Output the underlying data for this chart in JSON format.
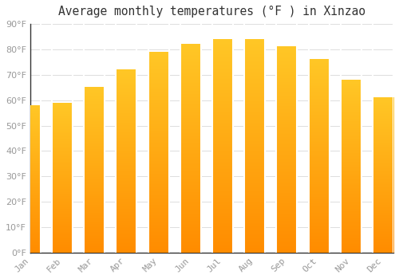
{
  "title": "Average monthly temperatures (°F ) in Xinzao",
  "months": [
    "Jan",
    "Feb",
    "Mar",
    "Apr",
    "May",
    "Jun",
    "Jul",
    "Aug",
    "Sep",
    "Oct",
    "Nov",
    "Dec"
  ],
  "values": [
    58,
    59,
    65,
    72,
    79,
    82,
    84,
    84,
    81,
    76,
    68,
    61
  ],
  "bar_color_top": "#FFC726",
  "bar_color_bottom": "#FF8C00",
  "background_color": "#FFFFFF",
  "grid_color": "#DDDDDD",
  "ylim": [
    0,
    90
  ],
  "yticks": [
    0,
    10,
    20,
    30,
    40,
    50,
    60,
    70,
    80,
    90
  ],
  "title_fontsize": 10.5,
  "tick_fontsize": 8,
  "title_color": "#333333",
  "tick_color": "#999999",
  "axis_color": "#333333"
}
